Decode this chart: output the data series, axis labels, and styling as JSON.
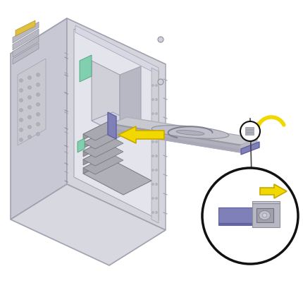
{
  "bg_color": "#ffffff",
  "case_top_color": "#d8d8e0",
  "case_top_light": "#e8e8f0",
  "case_side_color": "#c8c8d4",
  "case_front_color": "#d4d4dc",
  "case_edge_color": "#a0a0b0",
  "case_inner_color": "#e0e0e8",
  "case_inner_dark": "#c0c0cc",
  "interior_color": "#e4e4ec",
  "interior_dark": "#d0d0d8",
  "mesh_color": "#c8c8d0",
  "mesh_hole_color": "#b0b0bc",
  "box_color": "#d0d0d8",
  "box_dark": "#b8b8c4",
  "green_color": "#80d0b0",
  "drive_top": "#c8c8d0",
  "drive_side": "#b0b0bc",
  "drive_front": "#b8b8c4",
  "drive_platter": "#b8b8c8",
  "handle_color": "#8080b8",
  "handle_dark": "#6060a0",
  "bracket_color": "#b8b8c4",
  "bracket_dark": "#909098",
  "arrow_color": "#f0d800",
  "arrow_edge": "#c8a800",
  "circle_color": "#111111",
  "line_color": "#444444",
  "figsize": [
    4.3,
    4.02
  ],
  "dpi": 100
}
